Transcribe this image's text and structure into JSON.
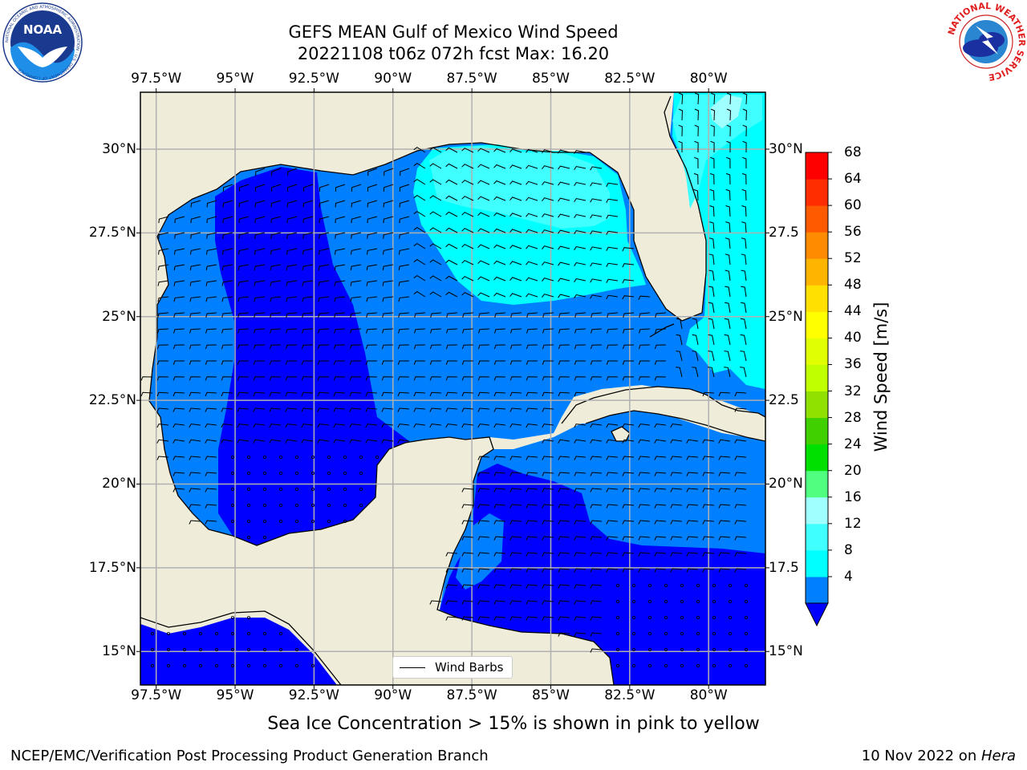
{
  "title": {
    "line1": "GEFS MEAN Gulf of Mexico Wind Speed",
    "line2": "20221108 t06z 072h fcst   Max: 16.20"
  },
  "logos": {
    "left": {
      "icon": "noaa-logo-icon",
      "text": "NOAA",
      "ring_text": "NATIONAL OCEANIC AND ATMOSPHERIC ADMINISTRATION · U.S. DEPARTMENT OF COMMERCE"
    },
    "right": {
      "icon": "nws-logo-icon",
      "ring_text": "NATIONAL WEATHER SERVICE"
    }
  },
  "axes": {
    "lon_ticks": [
      "97.5°W",
      "95°W",
      "92.5°W",
      "90°W",
      "87.5°W",
      "85°W",
      "82.5°W",
      "80°W"
    ],
    "lat_ticks_left": [
      "30°N",
      "27.5°N",
      "25°N",
      "22.5°N",
      "20°N",
      "17.5°N",
      "15°N"
    ],
    "lat_ticks_right": [
      "30°N",
      "27.5",
      "25°N",
      "22.5",
      "20°N",
      "17.5",
      "15°N"
    ],
    "lon_range": [
      -98,
      -78.2
    ],
    "lat_range": [
      14.0,
      31.7
    ]
  },
  "legend": {
    "label": "Wind Barbs",
    "placement": "bottom-center"
  },
  "colorbar": {
    "label": "Wind Speed [m/s]",
    "ticks": [
      "68",
      "64",
      "60",
      "56",
      "52",
      "48",
      "44",
      "40",
      "36",
      "32",
      "28",
      "24",
      "20",
      "16",
      "12",
      "8",
      "4"
    ],
    "colors": [
      "#0080ff",
      "#00ffff",
      "#40ffff",
      "#a0ffff",
      "#50ff80",
      "#00e000",
      "#40d000",
      "#90e000",
      "#c0ff00",
      "#e0ff00",
      "#ffff00",
      "#ffe000",
      "#ffb400",
      "#ff8c00",
      "#ff5a00",
      "#ff2d00",
      "#ff0000"
    ],
    "under_color": "#0000ff"
  },
  "map_colors": {
    "land": "#efedda",
    "ws_0_4": "#0000ff",
    "ws_4_8": "#0080ff",
    "ws_8_12": "#00ffff",
    "ws_12_16": "#40ffff",
    "ws_16_20": "#a0ffff",
    "grid": "#b0b0b0"
  },
  "caption": "Sea Ice Concentration > 15% is shown in pink to yellow",
  "footer": {
    "left": "NCEP/EMC/Verification Post Processing Product Generation Branch",
    "right_date": "10 Nov 2022 on ",
    "right_machine": "Hera"
  }
}
